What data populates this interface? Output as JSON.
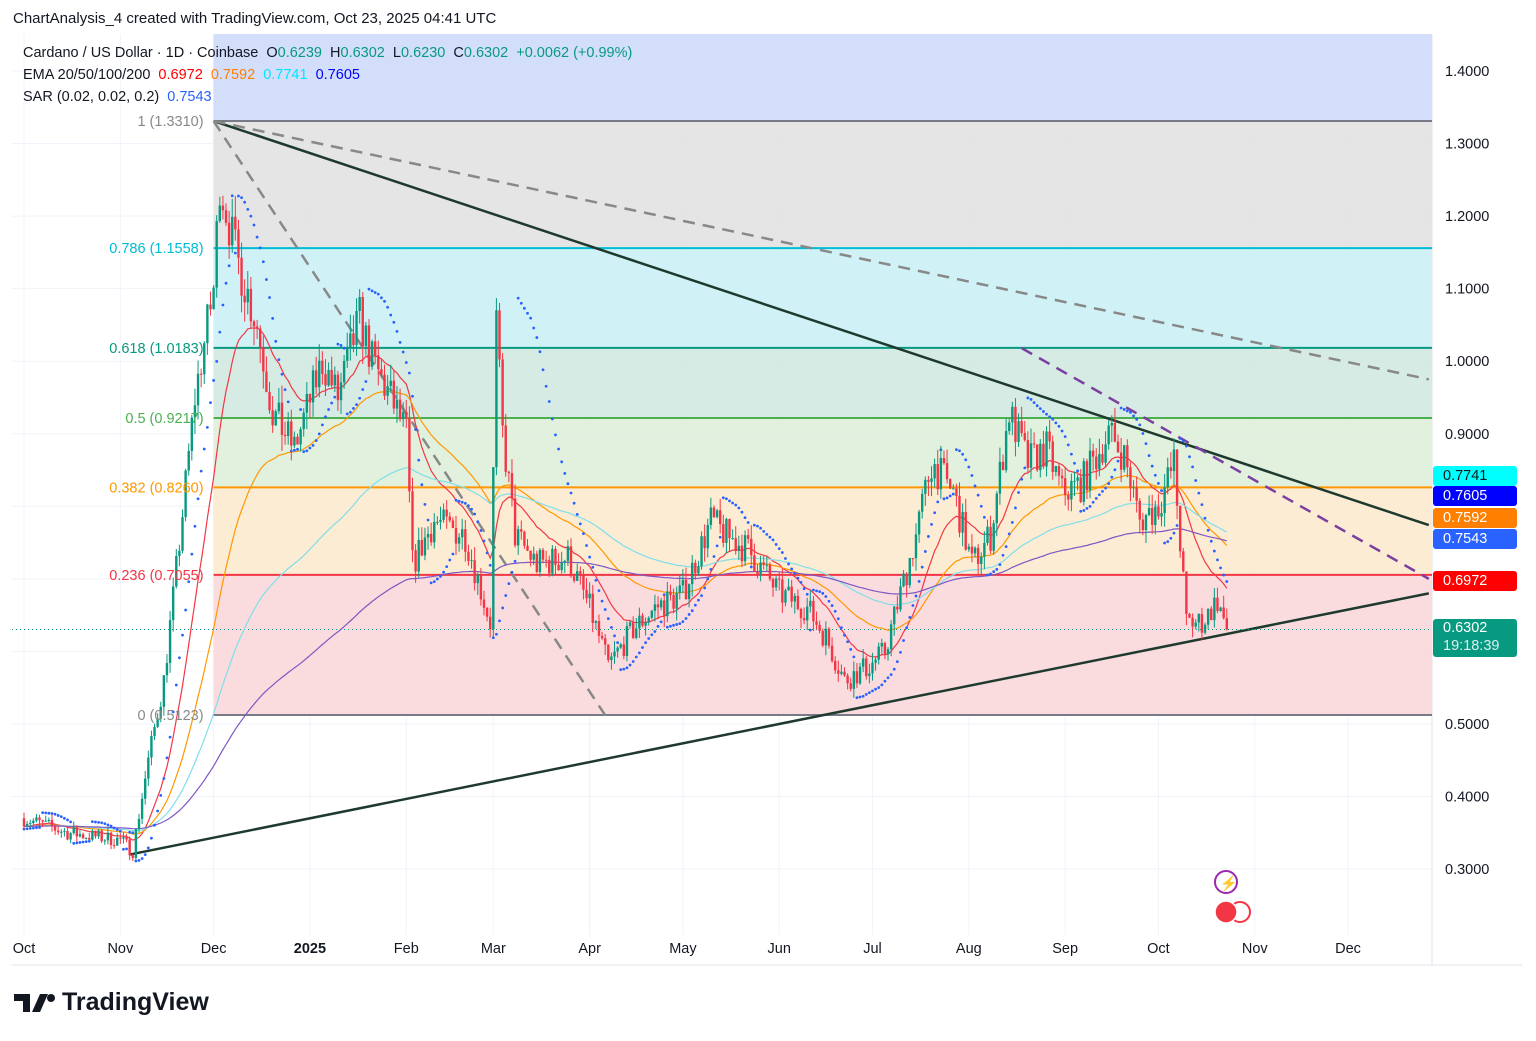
{
  "caption": "ChartAnalysis_4 created with TradingView.com, Oct 23, 2025 04:41 UTC",
  "legend": {
    "symbol": "Cardano / US Dollar · 1D · Coinbase",
    "o_label": "O",
    "o": "0.6239",
    "h_label": "H",
    "h": "0.6302",
    "l_label": "L",
    "l": "0.6230",
    "c_label": "C",
    "c": "0.6302",
    "change": "+0.0062 (+0.99%)",
    "ema_label": "EMA 20/50/100/200",
    "ema20": "0.6972",
    "ema50": "0.7592",
    "ema100": "0.7741",
    "ema200": "0.7605",
    "sar_label": "SAR (0.02, 0.02, 0.2)",
    "sar": "0.7543"
  },
  "price_labels": [
    {
      "text": "0.7741",
      "bg": "#00ffff",
      "fg": "#131722"
    },
    {
      "text": "0.7605",
      "bg": "#0000ff",
      "fg": "#ffffff"
    },
    {
      "text": "0.7592",
      "bg": "#ff7f00",
      "fg": "#ffffff"
    },
    {
      "text": "0.7543",
      "bg": "#2962ff",
      "fg": "#ffffff"
    },
    {
      "text": "0.6972",
      "bg": "#ff0000",
      "fg": "#ffffff"
    }
  ],
  "last_price": {
    "price": "0.6302",
    "countdown": "19:18:39",
    "bg": "#089981"
  },
  "brand": "TradingView",
  "colors": {
    "up": "#089981",
    "down": "#f23645",
    "ema20": "#f23645",
    "ema50": "#ff9800",
    "ema100": "#80deea",
    "ema200": "#7e57c2",
    "sar": "#2962ff"
  },
  "chart_data": {
    "type": "candlestick",
    "symbol": "ADA/USD",
    "timeframe": "1D",
    "ylim": [
      0.25,
      1.45
    ],
    "xlim": [
      "2024-09-28",
      "2025-12-28"
    ],
    "y_ticks": [
      "1.4000",
      "1.3000",
      "1.2000",
      "1.1000",
      "1.0000",
      "0.9000",
      "0.5000",
      "0.4000",
      "0.3000"
    ],
    "x_ticks": [
      {
        "label": "Oct",
        "date": "2024-10-01"
      },
      {
        "label": "Nov",
        "date": "2024-11-01"
      },
      {
        "label": "Dec",
        "date": "2024-12-01"
      },
      {
        "label": "2025",
        "date": "2025-01-01"
      },
      {
        "label": "Feb",
        "date": "2025-02-01"
      },
      {
        "label": "Mar",
        "date": "2025-03-01"
      },
      {
        "label": "Apr",
        "date": "2025-04-01"
      },
      {
        "label": "May",
        "date": "2025-05-01"
      },
      {
        "label": "Jun",
        "date": "2025-06-01"
      },
      {
        "label": "Jul",
        "date": "2025-07-01"
      },
      {
        "label": "Aug",
        "date": "2025-08-01"
      },
      {
        "label": "Sep",
        "date": "2025-09-01"
      },
      {
        "label": "Oct",
        "date": "2025-10-01"
      },
      {
        "label": "Nov",
        "date": "2025-11-01"
      },
      {
        "label": "Dec",
        "date": "2025-12-01"
      }
    ],
    "close_path": [
      [
        "2024-10-01",
        0.37
      ],
      [
        "2024-10-15",
        0.35
      ],
      [
        "2024-11-01",
        0.34
      ],
      [
        "2024-11-05",
        0.325
      ],
      [
        "2024-11-10",
        0.45
      ],
      [
        "2024-11-15",
        0.56
      ],
      [
        "2024-11-20",
        0.75
      ],
      [
        "2024-11-25",
        0.95
      ],
      [
        "2024-12-01",
        1.1
      ],
      [
        "2024-12-03",
        1.25
      ],
      [
        "2024-12-08",
        1.15
      ],
      [
        "2024-12-15",
        1.05
      ],
      [
        "2024-12-20",
        0.93
      ],
      [
        "2024-12-27",
        0.88
      ],
      [
        "2025-01-05",
        1.0
      ],
      [
        "2025-01-10",
        0.95
      ],
      [
        "2025-01-17",
        1.06
      ],
      [
        "2025-01-21",
        1.0
      ],
      [
        "2025-01-27",
        0.95
      ],
      [
        "2025-02-01",
        0.9
      ],
      [
        "2025-02-03",
        0.72
      ],
      [
        "2025-02-10",
        0.78
      ],
      [
        "2025-02-20",
        0.76
      ],
      [
        "2025-02-28",
        0.64
      ],
      [
        "2025-03-02",
        1.05
      ],
      [
        "2025-03-04",
        0.9
      ],
      [
        "2025-03-08",
        0.76
      ],
      [
        "2025-03-15",
        0.72
      ],
      [
        "2025-03-25",
        0.73
      ],
      [
        "2025-04-01",
        0.66
      ],
      [
        "2025-04-07",
        0.58
      ],
      [
        "2025-04-15",
        0.63
      ],
      [
        "2025-04-22",
        0.66
      ],
      [
        "2025-05-01",
        0.68
      ],
      [
        "2025-05-10",
        0.78
      ],
      [
        "2025-05-15",
        0.76
      ],
      [
        "2025-05-22",
        0.74
      ],
      [
        "2025-06-01",
        0.68
      ],
      [
        "2025-06-10",
        0.66
      ],
      [
        "2025-06-16",
        0.62
      ],
      [
        "2025-06-22",
        0.56
      ],
      [
        "2025-06-30",
        0.58
      ],
      [
        "2025-07-05",
        0.6
      ],
      [
        "2025-07-10",
        0.68
      ],
      [
        "2025-07-15",
        0.76
      ],
      [
        "2025-07-20",
        0.86
      ],
      [
        "2025-07-27",
        0.82
      ],
      [
        "2025-08-02",
        0.72
      ],
      [
        "2025-08-08",
        0.76
      ],
      [
        "2025-08-14",
        0.93
      ],
      [
        "2025-08-20",
        0.86
      ],
      [
        "2025-08-26",
        0.88
      ],
      [
        "2025-08-31",
        0.82
      ],
      [
        "2025-09-06",
        0.83
      ],
      [
        "2025-09-15",
        0.9
      ],
      [
        "2025-09-20",
        0.87
      ],
      [
        "2025-09-25",
        0.78
      ],
      [
        "2025-10-01",
        0.8
      ],
      [
        "2025-10-06",
        0.86
      ],
      [
        "2025-10-10",
        0.64
      ],
      [
        "2025-10-15",
        0.64
      ],
      [
        "2025-10-20",
        0.67
      ],
      [
        "2025-10-23",
        0.6302
      ]
    ],
    "fib_levels": [
      {
        "ratio": "1",
        "label": "1 (1.3310)",
        "price": 1.331,
        "line": "#787b86",
        "fill": "#e0e0e0"
      },
      {
        "ratio": "0.786",
        "label": "0.786 (1.1558)",
        "price": 1.1558,
        "line": "#00bcd4",
        "fill": "#c8f0f4"
      },
      {
        "ratio": "0.618",
        "label": "0.618 (1.0183)",
        "price": 1.0183,
        "line": "#089981",
        "fill": "#cfe7df"
      },
      {
        "ratio": "0.5",
        "label": "0.5 (0.9217)",
        "price": 0.9217,
        "line": "#4caf50",
        "fill": "#dcefd8"
      },
      {
        "ratio": "0.382",
        "label": "0.382 (0.8260)",
        "price": 0.826,
        "line": "#ff9800",
        "fill": "#fde9cc"
      },
      {
        "ratio": "0.236",
        "label": "0.236 (0.7055)",
        "price": 0.7055,
        "line": "#f23645",
        "fill": "#f9d6d8"
      },
      {
        "ratio": "0",
        "label": "0 (0.5123)",
        "price": 0.5123,
        "line": "#787b86",
        "fill": null
      }
    ],
    "fib_start": "2024-12-01",
    "above_fib_fill": "#d3defb",
    "trendlines": [
      {
        "name": "",
        "from": [
          "2024-12-01",
          1.331
        ],
        "to": [
          "2025-12-27",
          0.7741
        ],
        "style": "solid",
        "color": "#1e3a2f"
      },
      {
        "name": "",
        "from": [
          "2024-11-04",
          0.32
        ],
        "to": [
          "2025-12-27",
          0.68
        ],
        "style": "solid",
        "color": "#1e3a2f"
      },
      {
        "name": "",
        "from": [
          "2024-12-01",
          1.331
        ],
        "to": [
          "2025-12-27",
          0.975
        ],
        "style": "dashed",
        "color": "#888888"
      },
      {
        "name": "",
        "from": [
          "2024-12-01",
          1.331
        ],
        "to": [
          "2025-04-06",
          0.512
        ],
        "style": "dashed",
        "color": "#888888"
      },
      {
        "name": "",
        "from": [
          "2025-08-18",
          1.018
        ],
        "to": [
          "2025-12-27",
          0.7
        ],
        "style": "dashed",
        "color": "#7b3fa0"
      }
    ],
    "last_close": 0.6302
  }
}
